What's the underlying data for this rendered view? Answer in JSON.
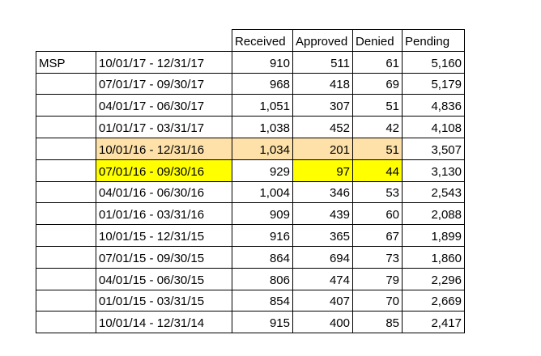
{
  "table": {
    "headers": [
      "",
      "",
      "Received",
      "Approved",
      "Denied",
      "Pending"
    ],
    "rows": [
      {
        "label": "MSP",
        "period": "10/01/17 - 12/31/17",
        "received": "910",
        "approved": "511",
        "denied": "61",
        "pending": "5,160"
      },
      {
        "label": "",
        "period": "07/01/17 - 09/30/17",
        "received": "968",
        "approved": "418",
        "denied": "69",
        "pending": "5,179"
      },
      {
        "label": "",
        "period": "04/01/17 - 06/30/17",
        "received": "1,051",
        "approved": "307",
        "denied": "51",
        "pending": "4,836"
      },
      {
        "label": "",
        "period": "01/01/17 - 03/31/17",
        "received": "1,038",
        "approved": "452",
        "denied": "42",
        "pending": "4,108"
      },
      {
        "label": "",
        "period": "10/01/16 - 12/31/16",
        "received": "1,034",
        "approved": "201",
        "denied": "51",
        "pending": "3,507"
      },
      {
        "label": "",
        "period": "07/01/16 - 09/30/16",
        "received": "929",
        "approved": "97",
        "denied": "44",
        "pending": "3,130"
      },
      {
        "label": "",
        "period": "04/01/16 - 06/30/16",
        "received": "1,004",
        "approved": "346",
        "denied": "53",
        "pending": "2,543"
      },
      {
        "label": "",
        "period": "01/01/16 - 03/31/16",
        "received": "909",
        "approved": "439",
        "denied": "60",
        "pending": "2,088"
      },
      {
        "label": "",
        "period": "10/01/15 - 12/31/15",
        "received": "916",
        "approved": "365",
        "denied": "67",
        "pending": "1,899"
      },
      {
        "label": "",
        "period": "07/01/15 - 09/30/15",
        "received": "864",
        "approved": "694",
        "denied": "73",
        "pending": "1,860"
      },
      {
        "label": "",
        "period": "04/01/15 - 06/30/15",
        "received": "806",
        "approved": "474",
        "denied": "79",
        "pending": "2,296"
      },
      {
        "label": "",
        "period": "01/01/15 - 03/31/15",
        "received": "854",
        "approved": "407",
        "denied": "70",
        "pending": "2,669"
      },
      {
        "label": "",
        "period": "10/01/14 - 12/31/14",
        "received": "915",
        "approved": "400",
        "denied": "85",
        "pending": "2,417"
      }
    ]
  },
  "highlight_colors": {
    "light_orange": "#fde1a8",
    "yellow": "#ffff00"
  }
}
